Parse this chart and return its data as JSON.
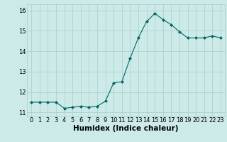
{
  "x": [
    0,
    1,
    2,
    3,
    4,
    5,
    6,
    7,
    8,
    9,
    10,
    11,
    12,
    13,
    14,
    15,
    16,
    17,
    18,
    19,
    20,
    21,
    22,
    23
  ],
  "y": [
    11.5,
    11.5,
    11.5,
    11.5,
    11.2,
    11.25,
    11.3,
    11.25,
    11.3,
    11.55,
    12.45,
    12.5,
    13.65,
    14.65,
    15.45,
    15.85,
    15.55,
    15.3,
    14.95,
    14.65,
    14.65,
    14.65,
    14.75,
    14.65
  ],
  "line_color": "#006666",
  "marker": "D",
  "marker_size": 2.0,
  "background_color": "#cceae7",
  "grid_color": "#aacccc",
  "xlabel": "Humidex (Indice chaleur)",
  "ylim": [
    10.8,
    16.3
  ],
  "xlim": [
    -0.5,
    23.5
  ],
  "yticks": [
    11,
    12,
    13,
    14,
    15,
    16
  ],
  "xticks": [
    0,
    1,
    2,
    3,
    4,
    5,
    6,
    7,
    8,
    9,
    10,
    11,
    12,
    13,
    14,
    15,
    16,
    17,
    18,
    19,
    20,
    21,
    22,
    23
  ],
  "xlabel_fontsize": 7.5,
  "tick_fontsize": 6.0
}
